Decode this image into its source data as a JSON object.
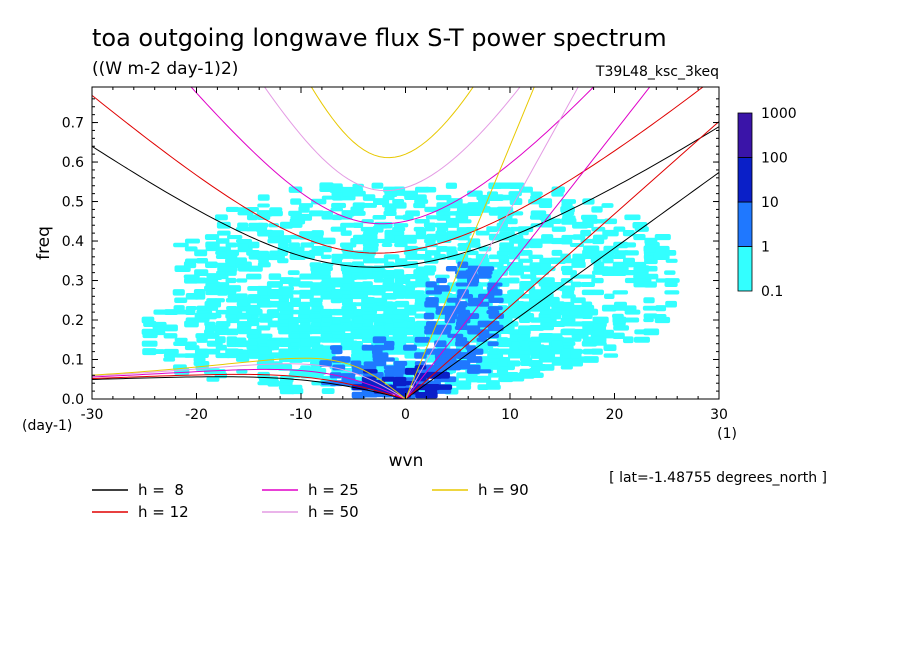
{
  "chart_data": {
    "type": "heatmap",
    "title": "toa outgoing longwave flux S-T power spectrum",
    "subtitle": "((W m-2 day-1)2)",
    "run_label": "T39L48_ksc_3keq",
    "xlabel": "wvn",
    "ylabel": "freq",
    "x_unit_label": "(1)",
    "y_unit_label": "(day-1)",
    "xlim": [
      -30,
      30
    ],
    "ylim": [
      0,
      0.79
    ],
    "x_ticks": [
      -30,
      -20,
      -10,
      0,
      10,
      20,
      30
    ],
    "x_tick_labels": [
      "-30",
      "-20",
      "-10",
      "0",
      "10",
      "20",
      "30"
    ],
    "y_ticks": [
      0,
      0.1,
      0.2,
      0.3,
      0.4,
      0.5,
      0.6,
      0.7
    ],
    "y_tick_labels": [
      "0.0",
      "0.1",
      "0.2",
      "0.3",
      "0.4",
      "0.5",
      "0.6",
      "0.7"
    ],
    "footnote": "[ lat=-1.48755 degrees_north ]",
    "colorbar": {
      "levels": [
        "0.1",
        "1",
        "10",
        "100",
        "1000"
      ],
      "colors": [
        "#33ffff",
        "#1f78ff",
        "#0a1fc8",
        "#3a14a8"
      ]
    },
    "dispersion_curves": [
      {
        "label": "h =  8",
        "h": 8,
        "color": "#000000"
      },
      {
        "label": "h = 12",
        "h": 12,
        "color": "#e00000"
      },
      {
        "label": "h = 25",
        "h": 25,
        "color": "#e000c8"
      },
      {
        "label": "h = 50",
        "h": 50,
        "color": "#e49be4"
      },
      {
        "label": "h = 90",
        "h": 90,
        "color": "#e8c800"
      }
    ],
    "power_regions": [
      {
        "level": "0.1-1",
        "kmin": -25,
        "kmax": 18,
        "fmin": 0.02,
        "fmax": 0.3
      },
      {
        "level": "0.1-1",
        "kmin": -22,
        "kmax": 25,
        "fmin": 0.05,
        "fmax": 0.55
      },
      {
        "level": "1-10",
        "kmin": -8,
        "kmax": 5,
        "fmin": 0.0,
        "fmax": 0.15
      },
      {
        "level": "1-10",
        "kmin": 2,
        "kmax": 8,
        "fmin": 0.05,
        "fmax": 0.35
      },
      {
        "level": "10-100",
        "kmin": -5,
        "kmax": 3,
        "fmin": 0.0,
        "fmax": 0.08
      }
    ]
  }
}
